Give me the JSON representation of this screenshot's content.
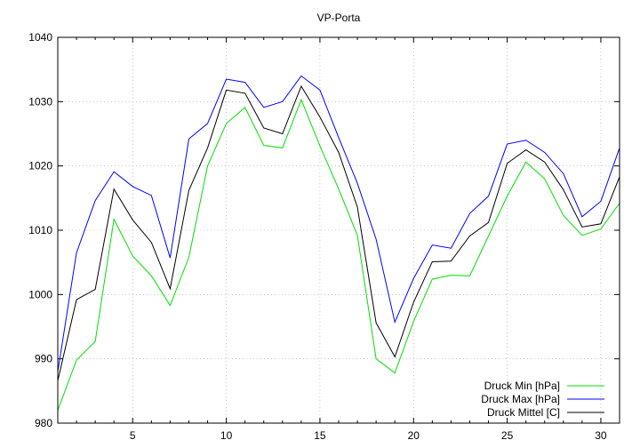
{
  "chart_data": {
    "type": "line",
    "title": "VP-Porta",
    "xlabel": "",
    "ylabel": "",
    "xlim": [
      1,
      31
    ],
    "ylim": [
      980,
      1040
    ],
    "x_ticks": [
      5,
      10,
      15,
      20,
      25,
      30
    ],
    "y_ticks": [
      980,
      990,
      1000,
      1010,
      1020,
      1030,
      1040
    ],
    "grid": true,
    "legend_position": "bottom-right",
    "x": [
      1,
      2,
      3,
      4,
      5,
      6,
      7,
      8,
      9,
      10,
      11,
      12,
      13,
      14,
      15,
      16,
      17,
      18,
      19,
      20,
      21,
      22,
      23,
      24,
      25,
      26,
      27,
      28,
      29,
      30,
      31
    ],
    "series": [
      {
        "name": "Druck Min [hPa]",
        "color": "#00e000",
        "values": [
          982.0,
          989.8,
          992.7,
          1011.7,
          1006.0,
          1002.9,
          998.3,
          1005.8,
          1020.0,
          1026.6,
          1029.1,
          1023.2,
          1022.8,
          1030.3,
          1023.1,
          1016.4,
          1009.2,
          990.0,
          987.8,
          995.8,
          1002.4,
          1003.0,
          1002.9,
          1009.1,
          1015.3,
          1020.6,
          1018.0,
          1012.3,
          1009.2,
          1010.2,
          1014.2
        ]
      },
      {
        "name": "Druck Max [hPa]",
        "color": "#0000ff",
        "values": [
          988.0,
          1006.5,
          1014.6,
          1019.1,
          1016.8,
          1015.4,
          1005.7,
          1024.2,
          1026.6,
          1033.5,
          1033.0,
          1029.1,
          1030.0,
          1034.0,
          1031.8,
          1024.4,
          1017.3,
          1008.6,
          995.7,
          1002.5,
          1007.7,
          1007.2,
          1012.6,
          1015.3,
          1023.4,
          1024.0,
          1022.1,
          1018.8,
          1012.1,
          1014.5,
          1022.8
        ]
      },
      {
        "name": "Druck Mittel [C]",
        "color": "#000000",
        "values": [
          986.6,
          999.2,
          1000.8,
          1016.4,
          1011.6,
          1008.1,
          1000.9,
          1016.2,
          1022.8,
          1031.8,
          1031.3,
          1025.9,
          1025.0,
          1032.4,
          1027.6,
          1022.1,
          1013.6,
          995.6,
          990.3,
          998.8,
          1005.1,
          1005.2,
          1009.1,
          1011.2,
          1020.4,
          1022.5,
          1020.6,
          1016.3,
          1010.5,
          1011.0,
          1018.3
        ]
      }
    ]
  }
}
